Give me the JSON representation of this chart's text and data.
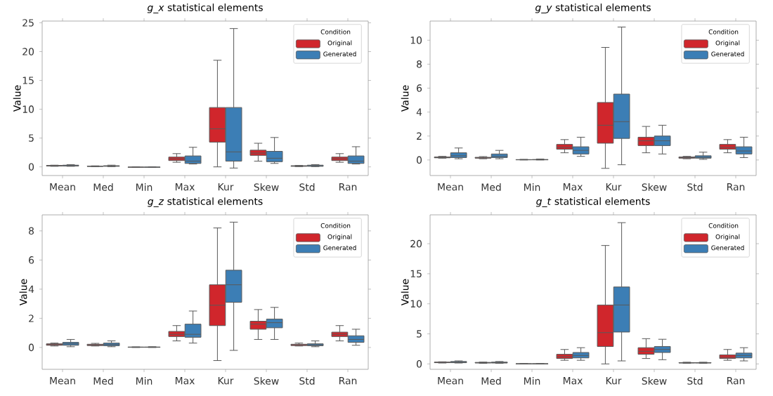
{
  "chart_data": [
    {
      "type": "box",
      "title": "*g_x* statistical elements",
      "ylabel": "Value",
      "categories": [
        "Mean",
        "Med",
        "Min",
        "Max",
        "Kur",
        "Skew",
        "Std",
        "Ran"
      ],
      "ylim": [
        -1.5,
        25.3
      ],
      "yticks": [
        0,
        5,
        10,
        15,
        20,
        25
      ],
      "legend": "top right",
      "legend_title": "Condition",
      "series": [
        {
          "name": "Original",
          "color": "#d0262c",
          "boxes": [
            {
              "low": 0.1,
              "q1": 0.15,
              "median": 0.2,
              "q3": 0.25,
              "high": 0.3
            },
            {
              "low": 0.05,
              "q1": 0.08,
              "median": 0.1,
              "q3": 0.13,
              "high": 0.18
            },
            {
              "low": -0.1,
              "q1": -0.07,
              "median": -0.05,
              "q3": -0.03,
              "high": 0
            },
            {
              "low": 0.8,
              "q1": 1.1,
              "median": 1.4,
              "q3": 1.7,
              "high": 2.3
            },
            {
              "low": 0,
              "q1": 4.3,
              "median": 6.6,
              "q3": 10.3,
              "high": 18.5
            },
            {
              "low": 1.0,
              "q1": 2.0,
              "median": 2.4,
              "q3": 2.9,
              "high": 4.1
            },
            {
              "low": 0.05,
              "q1": 0.1,
              "median": 0.15,
              "q3": 0.2,
              "high": 0.25
            },
            {
              "low": 0.8,
              "q1": 1.1,
              "median": 1.4,
              "q3": 1.7,
              "high": 2.3
            }
          ]
        },
        {
          "name": "Generated",
          "color": "#3c7eb5",
          "boxes": [
            {
              "low": 0.1,
              "q1": 0.15,
              "median": 0.2,
              "q3": 0.3,
              "high": 0.4
            },
            {
              "low": 0.05,
              "q1": 0.1,
              "median": 0.15,
              "q3": 0.2,
              "high": 0.3
            },
            {
              "low": -0.1,
              "q1": -0.07,
              "median": -0.05,
              "q3": -0.03,
              "high": 0
            },
            {
              "low": 0.5,
              "q1": 0.6,
              "median": 1.0,
              "q3": 1.9,
              "high": 3.4
            },
            {
              "low": -0.2,
              "q1": 1.0,
              "median": 2.6,
              "q3": 10.3,
              "high": 24
            },
            {
              "low": 0.6,
              "q1": 0.9,
              "median": 1.5,
              "q3": 2.7,
              "high": 5.1
            },
            {
              "low": 0.05,
              "q1": 0.1,
              "median": 0.2,
              "q3": 0.3,
              "high": 0.4
            },
            {
              "low": 0.5,
              "q1": 0.6,
              "median": 1.0,
              "q3": 1.9,
              "high": 3.5
            }
          ]
        }
      ]
    },
    {
      "type": "box",
      "title": "*g_y* statistical elements",
      "ylabel": "Value",
      "categories": [
        "Mean",
        "Med",
        "Min",
        "Max",
        "Kur",
        "Skew",
        "Std",
        "Ran"
      ],
      "ylim": [
        -1.3,
        11.6
      ],
      "yticks": [
        0,
        2,
        4,
        6,
        8,
        10
      ],
      "legend": "top right",
      "legend_title": "Condition",
      "series": [
        {
          "name": "Original",
          "color": "#d0262c",
          "boxes": [
            {
              "low": 0.15,
              "q1": 0.18,
              "median": 0.2,
              "q3": 0.25,
              "high": 0.3
            },
            {
              "low": 0.1,
              "q1": 0.15,
              "median": 0.18,
              "q3": 0.22,
              "high": 0.28
            },
            {
              "low": 0,
              "q1": 0.01,
              "median": 0.02,
              "q3": 0.03,
              "high": 0.05
            },
            {
              "low": 0.6,
              "q1": 0.9,
              "median": 1.05,
              "q3": 1.3,
              "high": 1.7
            },
            {
              "low": -0.7,
              "q1": 1.4,
              "median": 2.9,
              "q3": 4.8,
              "high": 9.4
            },
            {
              "low": 0.6,
              "q1": 1.2,
              "median": 1.6,
              "q3": 1.9,
              "high": 2.8
            },
            {
              "low": 0.1,
              "q1": 0.15,
              "median": 0.2,
              "q3": 0.25,
              "high": 0.3
            },
            {
              "low": 0.6,
              "q1": 0.9,
              "median": 1.05,
              "q3": 1.3,
              "high": 1.7
            }
          ]
        },
        {
          "name": "Generated",
          "color": "#3c7eb5",
          "boxes": [
            {
              "low": 0.1,
              "q1": 0.2,
              "median": 0.35,
              "q3": 0.6,
              "high": 1.0
            },
            {
              "low": 0.1,
              "q1": 0.2,
              "median": 0.3,
              "q3": 0.5,
              "high": 0.8
            },
            {
              "low": 0,
              "q1": 0.01,
              "median": 0.02,
              "q3": 0.04,
              "high": 0.08
            },
            {
              "low": 0.3,
              "q1": 0.5,
              "median": 0.8,
              "q3": 1.1,
              "high": 1.9
            },
            {
              "low": -0.4,
              "q1": 1.8,
              "median": 3.2,
              "q3": 5.5,
              "high": 11.1
            },
            {
              "low": 0.5,
              "q1": 1.2,
              "median": 1.6,
              "q3": 2.0,
              "high": 2.9
            },
            {
              "low": 0.05,
              "q1": 0.15,
              "median": 0.22,
              "q3": 0.35,
              "high": 0.65
            },
            {
              "low": 0.2,
              "q1": 0.5,
              "median": 0.75,
              "q3": 1.1,
              "high": 1.9
            }
          ]
        }
      ]
    },
    {
      "type": "box",
      "title": "*g_z* statistical elements",
      "ylabel": "Value",
      "categories": [
        "Mean",
        "Med",
        "Min",
        "Max",
        "Kur",
        "Skew",
        "Std",
        "Ran"
      ],
      "ylim": [
        -1.5,
        9.1
      ],
      "yticks": [
        0,
        2,
        4,
        6,
        8
      ],
      "legend": "top right",
      "legend_title": "Condition",
      "series": [
        {
          "name": "Original",
          "color": "#d0262c",
          "boxes": [
            {
              "low": 0.1,
              "q1": 0.15,
              "median": 0.2,
              "q3": 0.25,
              "high": 0.3
            },
            {
              "low": 0.1,
              "q1": 0.13,
              "median": 0.17,
              "q3": 0.22,
              "high": 0.28
            },
            {
              "low": 0,
              "q1": 0.01,
              "median": 0.02,
              "q3": 0.03,
              "high": 0.04
            },
            {
              "low": 0.45,
              "q1": 0.75,
              "median": 0.9,
              "q3": 1.1,
              "high": 1.5
            },
            {
              "low": -0.9,
              "q1": 1.5,
              "median": 2.9,
              "q3": 4.3,
              "high": 8.2
            },
            {
              "low": 0.55,
              "q1": 1.25,
              "median": 1.6,
              "q3": 1.8,
              "high": 2.6
            },
            {
              "low": 0.1,
              "q1": 0.13,
              "median": 0.18,
              "q3": 0.22,
              "high": 0.3
            },
            {
              "low": 0.45,
              "q1": 0.75,
              "median": 0.9,
              "q3": 1.05,
              "high": 1.5
            }
          ]
        },
        {
          "name": "Generated",
          "color": "#3c7eb5",
          "boxes": [
            {
              "low": 0.05,
              "q1": 0.15,
              "median": 0.25,
              "q3": 0.35,
              "high": 0.55
            },
            {
              "low": 0.05,
              "q1": 0.12,
              "median": 0.2,
              "q3": 0.3,
              "high": 0.45
            },
            {
              "low": 0,
              "q1": 0.01,
              "median": 0.02,
              "q3": 0.03,
              "high": 0.05
            },
            {
              "low": 0.3,
              "q1": 0.7,
              "median": 0.9,
              "q3": 1.6,
              "high": 2.5
            },
            {
              "low": -0.2,
              "q1": 3.1,
              "median": 4.3,
              "q3": 5.3,
              "high": 8.6
            },
            {
              "low": 0.55,
              "q1": 1.35,
              "median": 1.7,
              "q3": 1.95,
              "high": 2.75
            },
            {
              "low": 0.05,
              "q1": 0.12,
              "median": 0.18,
              "q3": 0.25,
              "high": 0.45
            },
            {
              "low": 0.15,
              "q1": 0.35,
              "median": 0.55,
              "q3": 0.8,
              "high": 1.25
            }
          ]
        }
      ]
    },
    {
      "type": "box",
      "title": "*g_t* statistical elements",
      "ylabel": "Value",
      "categories": [
        "Mean",
        "Med",
        "Min",
        "Max",
        "Kur",
        "Skew",
        "Std",
        "Ran"
      ],
      "ylim": [
        -0.9,
        24.8
      ],
      "yticks": [
        0,
        5,
        10,
        15,
        20
      ],
      "legend": "top right",
      "legend_title": "Condition",
      "series": [
        {
          "name": "Original",
          "color": "#d0262c",
          "boxes": [
            {
              "low": 0.15,
              "q1": 0.2,
              "median": 0.25,
              "q3": 0.3,
              "high": 0.35
            },
            {
              "low": 0.1,
              "q1": 0.15,
              "median": 0.2,
              "q3": 0.25,
              "high": 0.3
            },
            {
              "low": 0,
              "q1": 0.01,
              "median": 0.02,
              "q3": 0.03,
              "high": 0.05
            },
            {
              "low": 0.6,
              "q1": 0.9,
              "median": 1.2,
              "q3": 1.6,
              "high": 2.4
            },
            {
              "low": 0,
              "q1": 2.9,
              "median": 5.2,
              "q3": 9.8,
              "high": 19.7
            },
            {
              "low": 0.9,
              "q1": 1.6,
              "median": 2.1,
              "q3": 2.7,
              "high": 4.2
            },
            {
              "low": 0.1,
              "q1": 0.15,
              "median": 0.18,
              "q3": 0.22,
              "high": 0.28
            },
            {
              "low": 0.6,
              "q1": 0.9,
              "median": 1.1,
              "q3": 1.5,
              "high": 2.4
            }
          ]
        },
        {
          "name": "Generated",
          "color": "#3c7eb5",
          "boxes": [
            {
              "low": 0.15,
              "q1": 0.2,
              "median": 0.3,
              "q3": 0.4,
              "high": 0.5
            },
            {
              "low": 0.1,
              "q1": 0.15,
              "median": 0.2,
              "q3": 0.3,
              "high": 0.4
            },
            {
              "low": 0,
              "q1": 0.01,
              "median": 0.02,
              "q3": 0.03,
              "high": 0.05
            },
            {
              "low": 0.6,
              "q1": 1.0,
              "median": 1.4,
              "q3": 1.9,
              "high": 2.7
            },
            {
              "low": 0.5,
              "q1": 5.3,
              "median": 9.8,
              "q3": 12.8,
              "high": 23.5
            },
            {
              "low": 0.7,
              "q1": 1.9,
              "median": 2.4,
              "q3": 2.9,
              "high": 4.1
            },
            {
              "low": 0.1,
              "q1": 0.15,
              "median": 0.18,
              "q3": 0.22,
              "high": 0.28
            },
            {
              "low": 0.5,
              "q1": 1.0,
              "median": 1.4,
              "q3": 1.8,
              "high": 2.7
            }
          ]
        }
      ]
    }
  ]
}
